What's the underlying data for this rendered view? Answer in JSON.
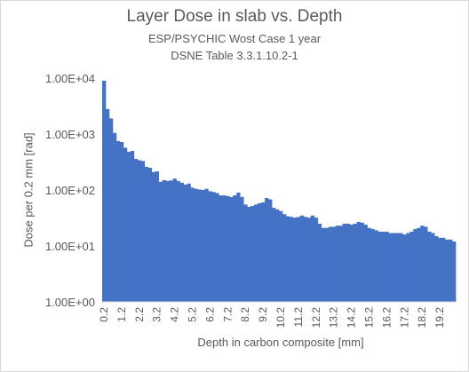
{
  "chart_data": {
    "type": "bar",
    "title": "Layer Dose in slab vs. Depth",
    "subtitles": [
      "ESP/PSYCHIC Wost Case 1 year",
      "DSNE Table 3.3.1.10.2-1"
    ],
    "xlabel": "Depth in carbon composite [mm]",
    "ylabel": "Dose per 0.2 mm [rad]",
    "y_scale": "log",
    "ylim": [
      1,
      10000
    ],
    "y_ticks": [
      "1.00E+00",
      "1.00E+01",
      "1.00E+02",
      "1.00E+03",
      "1.00E+04"
    ],
    "x_tick_labels": [
      "0.2",
      "1.2",
      "2.2",
      "3.2",
      "4.2",
      "5.2",
      "6.2",
      "7.2",
      "8.2",
      "9.2",
      "10.2",
      "11.2",
      "12.2",
      "13.2",
      "14.2",
      "15.2",
      "16.2",
      "17.2",
      "18.2",
      "19.2"
    ],
    "bar_color": "#4472c4",
    "grid": false,
    "x": [
      0.2,
      0.4,
      0.6,
      0.8,
      1.0,
      1.2,
      1.4,
      1.6,
      1.8,
      2.0,
      2.2,
      2.4,
      2.6,
      2.8,
      3.0,
      3.2,
      3.4,
      3.6,
      3.8,
      4.0,
      4.2,
      4.4,
      4.6,
      4.8,
      5.0,
      5.2,
      5.4,
      5.6,
      5.8,
      6.0,
      6.2,
      6.4,
      6.6,
      6.8,
      7.0,
      7.2,
      7.4,
      7.6,
      7.8,
      8.0,
      8.2,
      8.4,
      8.6,
      8.8,
      9.0,
      9.2,
      9.4,
      9.6,
      9.8,
      10.0,
      10.2,
      10.4,
      10.6,
      10.8,
      11.0,
      11.2,
      11.4,
      11.6,
      11.8,
      12.0,
      12.2,
      12.4,
      12.6,
      12.8,
      13.0,
      13.2,
      13.4,
      13.6,
      13.8,
      14.0,
      14.2,
      14.4,
      14.6,
      14.8,
      15.0,
      15.2,
      15.4,
      15.6,
      15.8,
      16.0,
      16.2,
      16.4,
      16.6,
      16.8,
      17.0,
      17.2,
      17.4,
      17.6,
      17.8,
      18.0,
      18.2,
      18.4,
      18.6,
      18.8,
      19.0,
      19.2,
      19.4,
      19.6,
      19.8,
      20.0
    ],
    "values": [
      9000,
      2800,
      1900,
      1050,
      750,
      720,
      570,
      480,
      500,
      360,
      340,
      330,
      260,
      250,
      210,
      215,
      140,
      150,
      145,
      148,
      160,
      145,
      135,
      125,
      130,
      110,
      105,
      102,
      100,
      105,
      95,
      92,
      88,
      80,
      80,
      78,
      75,
      80,
      90,
      75,
      55,
      50,
      52,
      55,
      58,
      60,
      72,
      68,
      48,
      45,
      42,
      37,
      34,
      33,
      32,
      33,
      35,
      33,
      32,
      35,
      32,
      25,
      21,
      21,
      22,
      22,
      23,
      23,
      25,
      25,
      24,
      25,
      27,
      26,
      24,
      21,
      20,
      19,
      18,
      18,
      18,
      17,
      17,
      17,
      17,
      16,
      17,
      18,
      20,
      21,
      23,
      22,
      18,
      17,
      15,
      14,
      14,
      13,
      13,
      12
    ]
  }
}
